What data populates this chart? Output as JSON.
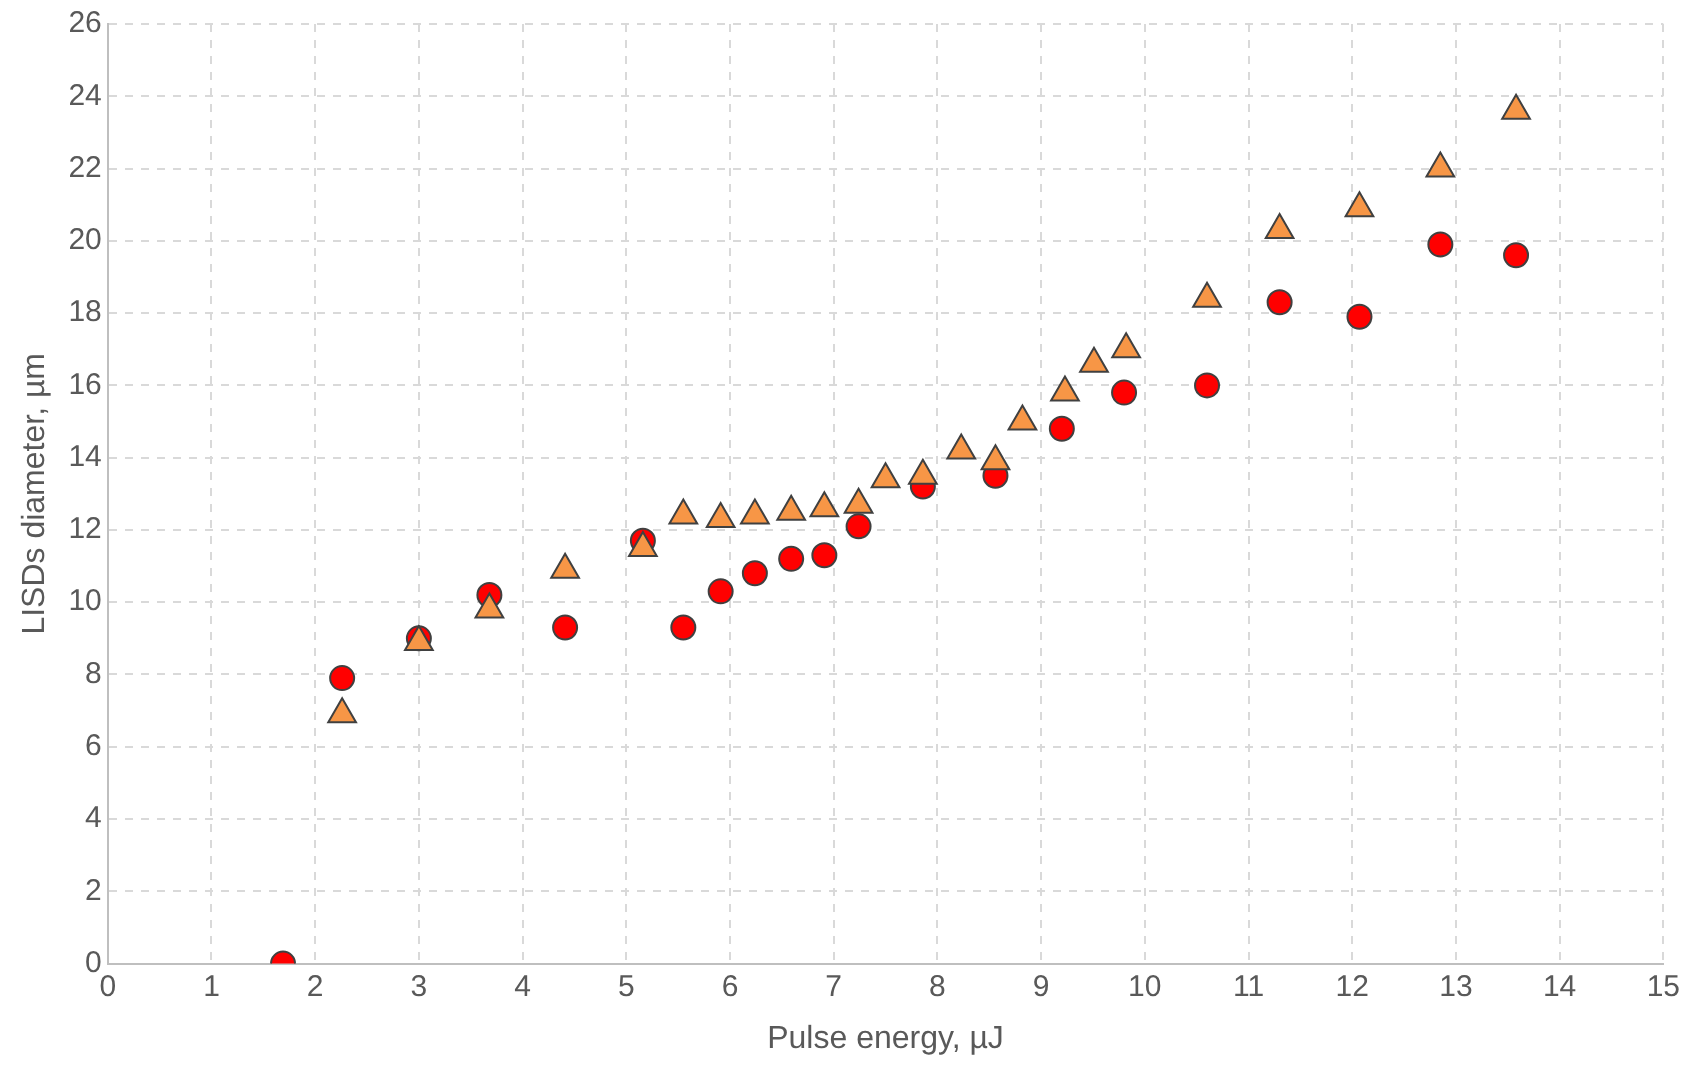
{
  "chart_data": {
    "type": "scatter",
    "xlabel": "Pulse energy, µJ",
    "ylabel": "LISDs diameter, µm",
    "xlim": [
      0,
      15
    ],
    "xticks": [
      0,
      1,
      2,
      3,
      4,
      5,
      6,
      7,
      8,
      9,
      10,
      11,
      12,
      13,
      14,
      15
    ],
    "ylim": [
      0,
      26
    ],
    "yticks": [
      0,
      2,
      4,
      6,
      8,
      10,
      12,
      14,
      16,
      18,
      20,
      22,
      24,
      26
    ],
    "grid": true,
    "series": [
      {
        "color": "#ff0000",
        "marker": "circle",
        "x": [
          1.69,
          2.26,
          3.0,
          3.68,
          4.41,
          5.16,
          5.55,
          5.91,
          6.24,
          6.59,
          6.91,
          7.24,
          7.86,
          8.56,
          9.2,
          9.8,
          10.6,
          11.3,
          12.07,
          12.85,
          13.58
        ],
        "values": [
          0,
          7.9,
          9.0,
          10.2,
          9.3,
          11.7,
          9.3,
          10.3,
          10.8,
          11.2,
          11.3,
          12.1,
          13.2,
          13.5,
          14.8,
          15.8,
          16.0,
          18.3,
          17.9,
          19.9,
          19.6
        ]
      },
      {
        "color": "#f79646",
        "marker": "triangle",
        "x": [
          2.26,
          3.0,
          3.68,
          4.41,
          5.16,
          5.55,
          5.91,
          6.24,
          6.59,
          6.91,
          7.24,
          7.5,
          7.86,
          8.23,
          8.56,
          8.82,
          9.23,
          9.51,
          9.82,
          10.6,
          11.3,
          12.07,
          12.85,
          13.58
        ],
        "values": [
          6.9,
          8.9,
          9.8,
          10.9,
          11.5,
          12.4,
          12.3,
          12.4,
          12.5,
          12.6,
          12.7,
          13.4,
          13.5,
          14.2,
          13.9,
          15.0,
          15.8,
          16.6,
          17.0,
          18.4,
          20.3,
          20.9,
          22.0,
          23.6
        ]
      }
    ]
  }
}
